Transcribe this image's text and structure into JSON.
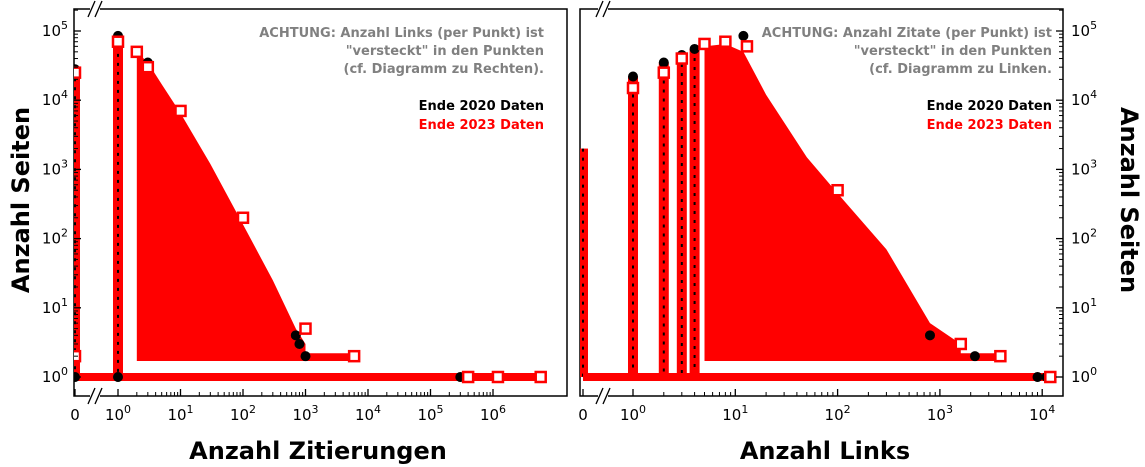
{
  "chart_data": [
    {
      "type": "scatter",
      "x_scale": "log-broken",
      "y_scale": "log",
      "xlabel": "Anzahl Zitierungen",
      "ylabel": "Anzahl Seiten",
      "x_ticks": [
        "0",
        "10^0",
        "10^1",
        "10^2",
        "10^3",
        "10^4",
        "10^5",
        "10^6"
      ],
      "y_ticks": [
        "10^0",
        "10^1",
        "10^2",
        "10^3",
        "10^4",
        "10^5"
      ],
      "xlim": [
        1,
        7000000
      ],
      "ylim": [
        0.6,
        200000
      ],
      "notes": [
        "ACHTUNG: Anzahl Links (per Punkt) ist",
        "\"versteckt\" in den Punkten",
        "(cf. Diagramm zu Rechten)."
      ],
      "legend": [
        {
          "label": "Ende 2020 Daten",
          "color": "#000000"
        },
        {
          "label": "Ende 2023 Daten",
          "color": "#ff0000"
        }
      ],
      "series": [
        {
          "name": "Ende 2020 Daten",
          "color": "#000000",
          "marker": "filled-circle",
          "points": [
            {
              "x": 0,
              "y": 28000
            },
            {
              "x": 0,
              "y": 1
            },
            {
              "x": 1,
              "y": 85000
            },
            {
              "x": 1,
              "y": 1
            },
            {
              "x": 3,
              "y": 35000
            },
            {
              "x": 700,
              "y": 4
            },
            {
              "x": 800,
              "y": 3
            },
            {
              "x": 1000,
              "y": 2
            },
            {
              "x": 300000,
              "y": 1
            },
            {
              "x": 400000,
              "y": 1
            }
          ]
        },
        {
          "name": "Ende 2023 Daten",
          "color": "#ff0000",
          "marker": "open-square",
          "points": [
            {
              "x": 0,
              "y": 25000
            },
            {
              "x": 0,
              "y": 2
            },
            {
              "x": 1,
              "y": 70000
            },
            {
              "x": 2,
              "y": 50000
            },
            {
              "x": 3,
              "y": 30000
            },
            {
              "x": 10,
              "y": 7000
            },
            {
              "x": 100,
              "y": 200
            },
            {
              "x": 1000,
              "y": 5
            },
            {
              "x": 6000,
              "y": 2
            },
            {
              "x": 400000,
              "y": 1
            },
            {
              "x": 1200000,
              "y": 1
            },
            {
              "x": 5800000,
              "y": 1
            }
          ]
        }
      ]
    },
    {
      "type": "scatter",
      "x_scale": "log-broken",
      "y_scale": "log",
      "xlabel": "Anzahl Links",
      "ylabel": "Anzahl Seiten",
      "x_ticks": [
        "0",
        "10^0",
        "10^1",
        "10^2",
        "10^3",
        "10^4"
      ],
      "y_ticks": [
        "10^0",
        "10^1",
        "10^2",
        "10^3",
        "10^4",
        "10^5"
      ],
      "xlim": [
        0.6,
        20000
      ],
      "ylim": [
        0.6,
        200000
      ],
      "notes": [
        "ACHTUNG: Anzahl Zitate (per Punkt) ist",
        "\"versteckt\" in den Punkten",
        "(cf. Diagramm zu Linken."
      ],
      "legend": [
        {
          "label": "Ende 2020 Daten",
          "color": "#000000"
        },
        {
          "label": "Ende 2023 Daten",
          "color": "#ff0000"
        }
      ],
      "series": [
        {
          "name": "Ende 2020 Daten",
          "color": "#000000",
          "marker": "filled-circle",
          "points": [
            {
              "x": 1,
              "y": 22000
            },
            {
              "x": 2,
              "y": 35000
            },
            {
              "x": 3,
              "y": 45000
            },
            {
              "x": 4,
              "y": 55000
            },
            {
              "x": 12,
              "y": 85000
            },
            {
              "x": 800,
              "y": 4
            },
            {
              "x": 2200,
              "y": 2
            },
            {
              "x": 9000,
              "y": 1
            },
            {
              "x": 11000,
              "y": 1
            }
          ]
        },
        {
          "name": "Ende 2023 Daten",
          "color": "#ff0000",
          "marker": "open-square",
          "points": [
            {
              "x": 1,
              "y": 15000
            },
            {
              "x": 2,
              "y": 25000
            },
            {
              "x": 3,
              "y": 40000
            },
            {
              "x": 5,
              "y": 65000
            },
            {
              "x": 8,
              "y": 70000
            },
            {
              "x": 13,
              "y": 60000
            },
            {
              "x": 100,
              "y": 500
            },
            {
              "x": 1600,
              "y": 3
            },
            {
              "x": 3900,
              "y": 2
            },
            {
              "x": 12000,
              "y": 1
            }
          ]
        }
      ]
    }
  ]
}
